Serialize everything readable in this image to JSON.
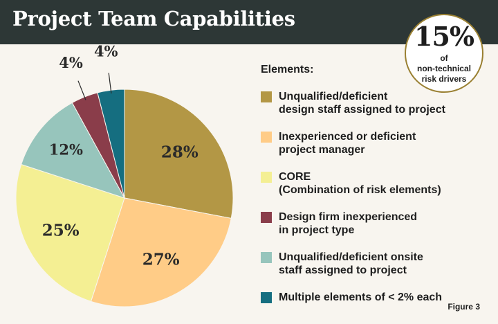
{
  "header": {
    "title": "Project Team Capabilities"
  },
  "badge": {
    "value": "15%",
    "text": "of\nnon-technical\nrisk drivers"
  },
  "legend": {
    "title": "Elements:",
    "items": [
      {
        "label": "Unqualified/deficient\ndesign staff assigned to project",
        "color": "#b39745"
      },
      {
        "label": "Inexperienced or deficient\nproject manager",
        "color": "#ffcc87"
      },
      {
        "label": "CORE\n(Combination of risk elements)",
        "color": "#f4ef93"
      },
      {
        "label": "Design firm inexperienced\nin project type",
        "color": "#8a3d4a"
      },
      {
        "label": "Unqualified/deficient onsite\nstaff assigned to project",
        "color": "#97c5bc"
      },
      {
        "label": "Multiple elements of < 2% each",
        "color": "#156e80"
      }
    ]
  },
  "figure_label": "Figure 3",
  "chart_data": {
    "type": "pie",
    "title": "Project Team Capabilities",
    "slices": [
      {
        "label": "Unqualified/deficient design staff assigned to project",
        "value": 28,
        "display": "28%",
        "color": "#b39745"
      },
      {
        "label": "Inexperienced or deficient project manager",
        "value": 27,
        "display": "27%",
        "color": "#ffcc87"
      },
      {
        "label": "CORE (Combination of risk elements)",
        "value": 25,
        "display": "25%",
        "color": "#f4ef93"
      },
      {
        "label": "Unqualified/deficient onsite staff assigned to project",
        "value": 12,
        "display": "12%",
        "color": "#97c5bc"
      },
      {
        "label": "Design firm inexperienced in project type",
        "value": 4,
        "display": "4%",
        "color": "#8a3d4a"
      },
      {
        "label": "Multiple elements of < 2% each",
        "value": 4,
        "display": "4%",
        "color": "#156e80"
      }
    ],
    "start": "12 o'clock, clockwise",
    "legend_position": "right"
  }
}
